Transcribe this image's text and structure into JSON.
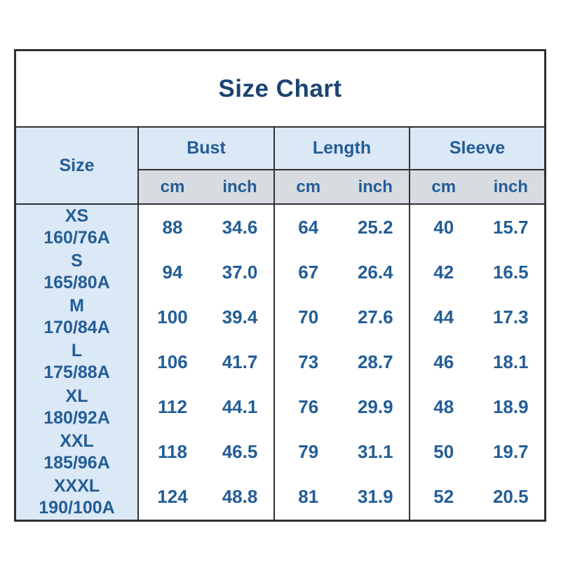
{
  "title": "Size Chart",
  "colors": {
    "title_text": "#1c4470",
    "table_text": "#235d97",
    "header_bg": "#dbe8f5",
    "units_bg": "#d8dce1",
    "border": "#2e3033",
    "table_bg": "#ffffff"
  },
  "chart_data": {
    "type": "table",
    "title": "Size Chart",
    "size_column_label": "Size",
    "groups": [
      {
        "label": "Bust"
      },
      {
        "label": "Length"
      },
      {
        "label": "Sleeve"
      }
    ],
    "units": [
      "cm",
      "inch"
    ],
    "rows": [
      {
        "size": "XS",
        "spec": "160/76A",
        "bust_cm": "88",
        "bust_inch": "34.6",
        "length_cm": "64",
        "length_inch": "25.2",
        "sleeve_cm": "40",
        "sleeve_inch": "15.7"
      },
      {
        "size": "S",
        "spec": "165/80A",
        "bust_cm": "94",
        "bust_inch": "37.0",
        "length_cm": "67",
        "length_inch": "26.4",
        "sleeve_cm": "42",
        "sleeve_inch": "16.5"
      },
      {
        "size": "M",
        "spec": "170/84A",
        "bust_cm": "100",
        "bust_inch": "39.4",
        "length_cm": "70",
        "length_inch": "27.6",
        "sleeve_cm": "44",
        "sleeve_inch": "17.3"
      },
      {
        "size": "L",
        "spec": "175/88A",
        "bust_cm": "106",
        "bust_inch": "41.7",
        "length_cm": "73",
        "length_inch": "28.7",
        "sleeve_cm": "46",
        "sleeve_inch": "18.1"
      },
      {
        "size": "XL",
        "spec": "180/92A",
        "bust_cm": "112",
        "bust_inch": "44.1",
        "length_cm": "76",
        "length_inch": "29.9",
        "sleeve_cm": "48",
        "sleeve_inch": "18.9"
      },
      {
        "size": "XXL",
        "spec": "185/96A",
        "bust_cm": "118",
        "bust_inch": "46.5",
        "length_cm": "79",
        "length_inch": "31.1",
        "sleeve_cm": "50",
        "sleeve_inch": "19.7"
      },
      {
        "size": "XXXL",
        "spec": "190/100A",
        "bust_cm": "124",
        "bust_inch": "48.8",
        "length_cm": "81",
        "length_inch": "31.9",
        "sleeve_cm": "52",
        "sleeve_inch": "20.5"
      }
    ]
  }
}
